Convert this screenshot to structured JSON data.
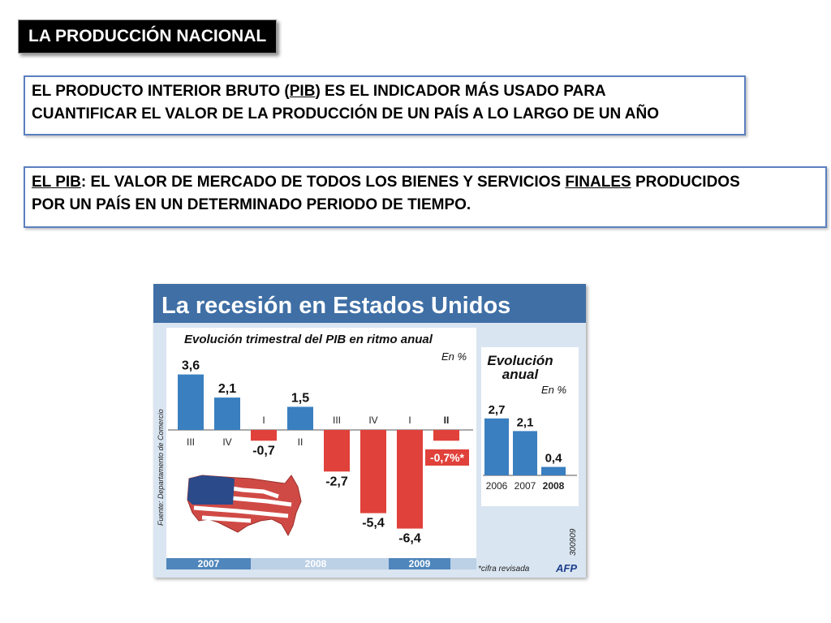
{
  "slide": {
    "title": "LA PRODUCCIÓN NACIONAL",
    "box1": {
      "line1_a": "EL PRODUCTO INTERIOR BRUTO  (",
      "line1_u": "PIB",
      "line1_b": ") ES EL INDICADOR MÁS USADO PARA",
      "line2": "CUANTIFICAR EL VALOR DE LA PRODUCCIÓN DE UN PAÍS A LO LARGO DE UN AÑO"
    },
    "box2": {
      "u1": "EL PIB",
      "t1": ": EL VALOR DE MERCADO DE TODOS LOS BIENES Y SERVICIOS ",
      "u2": "FINALES",
      "t2": " PRODUCIDOS",
      "line2": "POR UN  PAÍS EN UN DETERMINADO PERIODO DE TIEMPO."
    }
  },
  "infographic": {
    "header": "La recesión en Estados Unidos",
    "source": "Fuente: Departamento de Comercio",
    "footnote": "*cifra revisada",
    "agency": "AFP",
    "code": "300909",
    "years": [
      "2007",
      "2008",
      "2009"
    ],
    "colors": {
      "header_bg": "#3f6fa5",
      "pos_bar": "#3a7fc0",
      "neg_bar": "#e0413a",
      "year_band": "#4f86bb"
    }
  },
  "chart_data": [
    {
      "type": "bar",
      "title": "Evolución trimestral del PIB en ritmo anual",
      "unit_label": "En %",
      "categories": [
        "III",
        "IV",
        "I",
        "II",
        "III",
        "IV",
        "I",
        "II"
      ],
      "values": [
        3.6,
        2.1,
        -0.7,
        1.5,
        -2.7,
        -5.4,
        -6.4,
        -0.7
      ],
      "value_labels": [
        "3,6",
        "2,1",
        "-0,7",
        "1,5",
        "-2,7",
        "-5,4",
        "-6,4",
        "-0,7%*"
      ],
      "highlight_last": true
    },
    {
      "type": "bar",
      "title": "Evolución anual",
      "unit_label": "En %",
      "categories": [
        "2006",
        "2007",
        "2008"
      ],
      "values": [
        2.7,
        2.1,
        0.4
      ],
      "value_labels": [
        "2,7",
        "2,1",
        "0,4"
      ]
    }
  ]
}
